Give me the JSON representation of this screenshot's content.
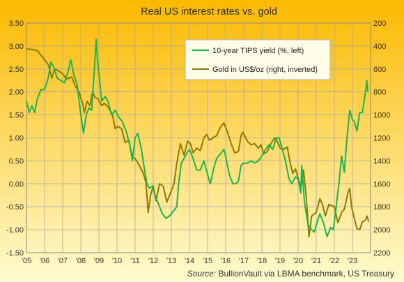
{
  "chart_data": {
    "type": "line",
    "title": "Real US interest rates vs. gold",
    "source_label": "Source:",
    "source_text": "BullionVault via LBMA benchmark, US Treasury",
    "x_ticks": [
      "'05",
      "'06",
      "'07",
      "'08",
      "'09",
      "'10",
      "'11",
      "'12",
      "'13",
      "'14",
      "'15",
      "'16",
      "'17",
      "'18",
      "'19",
      "'20",
      "'21",
      "'22",
      "'23"
    ],
    "xlim": [
      2005.0,
      2024.0
    ],
    "y_left": {
      "ylim": [
        -1.5,
        3.5
      ],
      "ticks": [
        "3.50",
        "3.00",
        "2.50",
        "2.00",
        "1.50",
        "1.00",
        "0.50",
        "0.00",
        "-0.50",
        "-1.00",
        "-1.50"
      ]
    },
    "y_right": {
      "ylim": [
        200,
        2200
      ],
      "inverted": true,
      "ticks": [
        "200",
        "400",
        "600",
        "800",
        "1000",
        "1200",
        "1400",
        "1600",
        "1800",
        "2000",
        "2200"
      ]
    },
    "legend_position": "top-right",
    "grid": true,
    "series": [
      {
        "name": "10-year TIPS yield (%, left)",
        "axis": "left",
        "color": "#1db34f",
        "points": [
          [
            2005.0,
            1.8
          ],
          [
            2005.15,
            1.55
          ],
          [
            2005.3,
            1.7
          ],
          [
            2005.45,
            1.55
          ],
          [
            2005.6,
            1.85
          ],
          [
            2005.8,
            2.05
          ],
          [
            2006.0,
            2.05
          ],
          [
            2006.2,
            2.3
          ],
          [
            2006.35,
            2.65
          ],
          [
            2006.5,
            2.55
          ],
          [
            2006.7,
            2.3
          ],
          [
            2006.9,
            2.25
          ],
          [
            2007.1,
            2.2
          ],
          [
            2007.3,
            2.45
          ],
          [
            2007.45,
            2.7
          ],
          [
            2007.6,
            2.4
          ],
          [
            2007.8,
            2.15
          ],
          [
            2008.0,
            1.5
          ],
          [
            2008.15,
            1.1
          ],
          [
            2008.3,
            1.5
          ],
          [
            2008.45,
            1.65
          ],
          [
            2008.6,
            1.6
          ],
          [
            2008.75,
            2.5
          ],
          [
            2008.85,
            3.15
          ],
          [
            2008.92,
            2.7
          ],
          [
            2009.0,
            2.4
          ],
          [
            2009.15,
            1.8
          ],
          [
            2009.35,
            1.9
          ],
          [
            2009.5,
            1.8
          ],
          [
            2009.7,
            1.5
          ],
          [
            2009.9,
            1.6
          ],
          [
            2010.1,
            1.45
          ],
          [
            2010.3,
            1.35
          ],
          [
            2010.5,
            1.15
          ],
          [
            2010.7,
            0.85
          ],
          [
            2010.85,
            0.5
          ],
          [
            2011.0,
            1.0
          ],
          [
            2011.15,
            1.1
          ],
          [
            2011.35,
            0.75
          ],
          [
            2011.5,
            0.35
          ],
          [
            2011.65,
            0.0
          ],
          [
            2011.8,
            -0.1
          ],
          [
            2011.95,
            -0.05
          ],
          [
            2012.15,
            -0.3
          ],
          [
            2012.35,
            -0.5
          ],
          [
            2012.5,
            -0.65
          ],
          [
            2012.7,
            -0.75
          ],
          [
            2012.9,
            -0.7
          ],
          [
            2013.1,
            -0.6
          ],
          [
            2013.3,
            -0.5
          ],
          [
            2013.4,
            0.0
          ],
          [
            2013.55,
            0.45
          ],
          [
            2013.7,
            0.55
          ],
          [
            2013.9,
            0.7
          ],
          [
            2014.0,
            0.75
          ],
          [
            2014.2,
            0.55
          ],
          [
            2014.4,
            0.3
          ],
          [
            2014.6,
            0.3
          ],
          [
            2014.8,
            0.5
          ],
          [
            2015.0,
            0.2
          ],
          [
            2015.15,
            0.0
          ],
          [
            2015.35,
            0.35
          ],
          [
            2015.5,
            0.55
          ],
          [
            2015.7,
            0.65
          ],
          [
            2015.9,
            0.75
          ],
          [
            2016.0,
            0.6
          ],
          [
            2016.2,
            0.2
          ],
          [
            2016.4,
            0.0
          ],
          [
            2016.55,
            0.0
          ],
          [
            2016.7,
            0.05
          ],
          [
            2016.85,
            0.4
          ],
          [
            2017.0,
            0.45
          ],
          [
            2017.2,
            0.45
          ],
          [
            2017.4,
            0.5
          ],
          [
            2017.6,
            0.45
          ],
          [
            2017.8,
            0.5
          ],
          [
            2018.0,
            0.6
          ],
          [
            2018.2,
            0.75
          ],
          [
            2018.4,
            0.85
          ],
          [
            2018.6,
            0.75
          ],
          [
            2018.8,
            1.0
          ],
          [
            2018.95,
            1.0
          ],
          [
            2019.1,
            0.8
          ],
          [
            2019.3,
            0.5
          ],
          [
            2019.5,
            0.1
          ],
          [
            2019.65,
            0.0
          ],
          [
            2019.85,
            0.15
          ],
          [
            2020.0,
            0.1
          ],
          [
            2020.15,
            -0.2
          ],
          [
            2020.2,
            0.4
          ],
          [
            2020.35,
            -0.4
          ],
          [
            2020.55,
            -0.9
          ],
          [
            2020.75,
            -1.0
          ],
          [
            2020.9,
            -1.05
          ],
          [
            2021.0,
            -0.9
          ],
          [
            2021.2,
            -0.65
          ],
          [
            2021.4,
            -0.85
          ],
          [
            2021.6,
            -1.15
          ],
          [
            2021.8,
            -0.95
          ],
          [
            2021.95,
            -1.0
          ],
          [
            2022.1,
            -0.5
          ],
          [
            2022.25,
            0.0
          ],
          [
            2022.4,
            0.6
          ],
          [
            2022.55,
            0.25
          ],
          [
            2022.7,
            1.0
          ],
          [
            2022.85,
            1.6
          ],
          [
            2023.0,
            1.4
          ],
          [
            2023.1,
            1.35
          ],
          [
            2023.25,
            1.15
          ],
          [
            2023.4,
            1.55
          ],
          [
            2023.55,
            1.55
          ],
          [
            2023.7,
            1.95
          ],
          [
            2023.8,
            2.25
          ],
          [
            2023.85,
            2.0
          ]
        ]
      },
      {
        "name": "Gold in US$/oz (right, inverted)",
        "axis": "right",
        "color": "#8c7a06",
        "points": [
          [
            2005.0,
            425
          ],
          [
            2005.3,
            430
          ],
          [
            2005.6,
            440
          ],
          [
            2005.9,
            500
          ],
          [
            2006.2,
            560
          ],
          [
            2006.4,
            680
          ],
          [
            2006.55,
            600
          ],
          [
            2006.8,
            620
          ],
          [
            2007.0,
            640
          ],
          [
            2007.2,
            690
          ],
          [
            2007.5,
            670
          ],
          [
            2007.7,
            750
          ],
          [
            2007.9,
            800
          ],
          [
            2008.1,
            900
          ],
          [
            2008.2,
            980
          ],
          [
            2008.35,
            880
          ],
          [
            2008.5,
            920
          ],
          [
            2008.65,
            800
          ],
          [
            2008.8,
            850
          ],
          [
            2008.95,
            860
          ],
          [
            2009.15,
            920
          ],
          [
            2009.3,
            900
          ],
          [
            2009.5,
            930
          ],
          [
            2009.75,
            1000
          ],
          [
            2009.9,
            1120
          ],
          [
            2010.05,
            1100
          ],
          [
            2010.25,
            1120
          ],
          [
            2010.45,
            1240
          ],
          [
            2010.65,
            1220
          ],
          [
            2010.85,
            1370
          ],
          [
            2011.0,
            1380
          ],
          [
            2011.2,
            1430
          ],
          [
            2011.45,
            1510
          ],
          [
            2011.6,
            1590
          ],
          [
            2011.72,
            1850
          ],
          [
            2011.85,
            1700
          ],
          [
            2012.0,
            1620
          ],
          [
            2012.15,
            1750
          ],
          [
            2012.35,
            1600
          ],
          [
            2012.55,
            1620
          ],
          [
            2012.75,
            1760
          ],
          [
            2012.95,
            1680
          ],
          [
            2013.15,
            1600
          ],
          [
            2013.3,
            1420
          ],
          [
            2013.5,
            1250
          ],
          [
            2013.7,
            1350
          ],
          [
            2013.9,
            1230
          ],
          [
            2014.05,
            1250
          ],
          [
            2014.2,
            1330
          ],
          [
            2014.4,
            1290
          ],
          [
            2014.6,
            1310
          ],
          [
            2014.8,
            1200
          ],
          [
            2014.95,
            1170
          ],
          [
            2015.1,
            1220
          ],
          [
            2015.3,
            1200
          ],
          [
            2015.5,
            1180
          ],
          [
            2015.7,
            1110
          ],
          [
            2015.9,
            1070
          ],
          [
            2016.1,
            1150
          ],
          [
            2016.3,
            1250
          ],
          [
            2016.5,
            1330
          ],
          [
            2016.7,
            1320
          ],
          [
            2016.85,
            1180
          ],
          [
            2016.95,
            1150
          ],
          [
            2017.2,
            1230
          ],
          [
            2017.4,
            1260
          ],
          [
            2017.6,
            1250
          ],
          [
            2017.8,
            1290
          ],
          [
            2017.95,
            1260
          ],
          [
            2018.1,
            1340
          ],
          [
            2018.3,
            1320
          ],
          [
            2018.5,
            1250
          ],
          [
            2018.7,
            1200
          ],
          [
            2018.85,
            1230
          ],
          [
            2019.0,
            1290
          ],
          [
            2019.2,
            1300
          ],
          [
            2019.4,
            1280
          ],
          [
            2019.55,
            1410
          ],
          [
            2019.7,
            1510
          ],
          [
            2019.85,
            1470
          ],
          [
            2020.0,
            1550
          ],
          [
            2020.15,
            1640
          ],
          [
            2020.3,
            1480
          ],
          [
            2020.45,
            1720
          ],
          [
            2020.6,
            2060
          ],
          [
            2020.75,
            1880
          ],
          [
            2020.9,
            1860
          ],
          [
            2021.0,
            1850
          ],
          [
            2021.2,
            1730
          ],
          [
            2021.35,
            1780
          ],
          [
            2021.5,
            1880
          ],
          [
            2021.7,
            1780
          ],
          [
            2021.85,
            1790
          ],
          [
            2022.0,
            1800
          ],
          [
            2022.2,
            1940
          ],
          [
            2022.4,
            1850
          ],
          [
            2022.55,
            1820
          ],
          [
            2022.75,
            1680
          ],
          [
            2022.85,
            1640
          ],
          [
            2022.95,
            1800
          ],
          [
            2023.1,
            1900
          ],
          [
            2023.25,
            1990
          ],
          [
            2023.4,
            2000
          ],
          [
            2023.55,
            1930
          ],
          [
            2023.7,
            1920
          ],
          [
            2023.8,
            1880
          ],
          [
            2023.9,
            1930
          ]
        ]
      }
    ]
  }
}
